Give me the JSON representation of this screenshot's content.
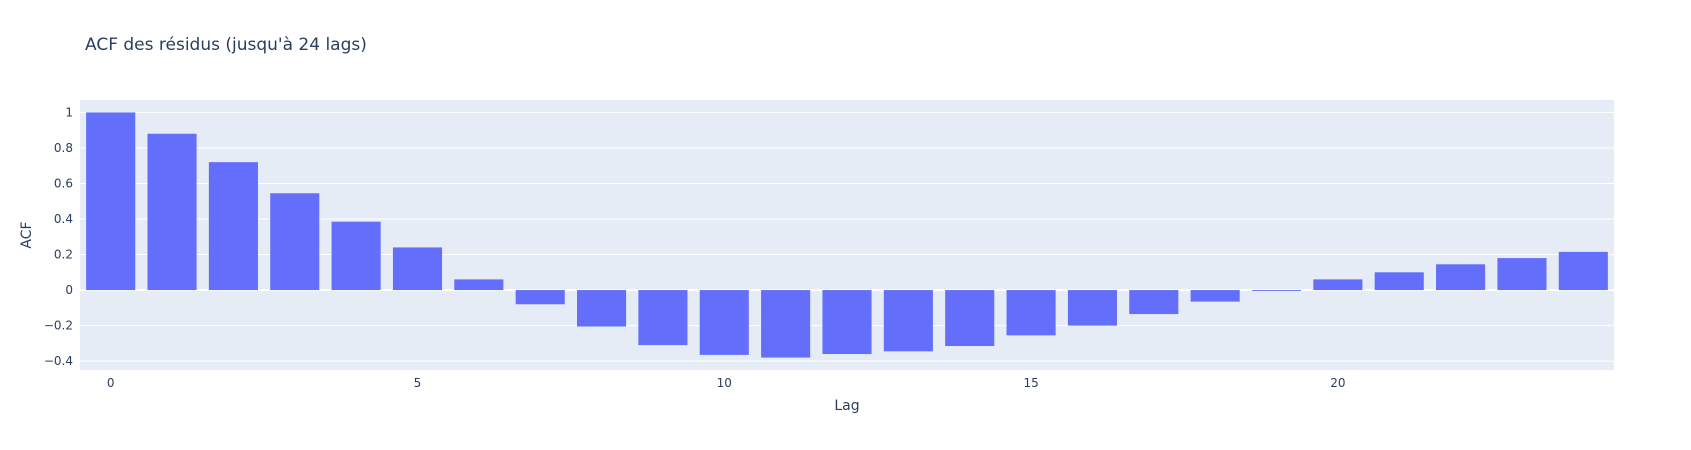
{
  "chart_data": {
    "type": "bar",
    "title": "ACF des résidus (jusqu'à 24 lags)",
    "xlabel": "Lag",
    "ylabel": "ACF",
    "x": [
      0,
      1,
      2,
      3,
      4,
      5,
      6,
      7,
      8,
      9,
      10,
      11,
      12,
      13,
      14,
      15,
      16,
      17,
      18,
      19,
      20,
      21,
      22,
      23,
      24
    ],
    "values": [
      1.0,
      0.88,
      0.72,
      0.545,
      0.385,
      0.24,
      0.06,
      -0.08,
      -0.205,
      -0.31,
      -0.365,
      -0.38,
      -0.36,
      -0.345,
      -0.315,
      -0.255,
      -0.2,
      -0.135,
      -0.065,
      -0.005,
      0.06,
      0.1,
      0.145,
      0.18,
      0.215
    ],
    "xlim": [
      -0.5,
      24.5
    ],
    "ylim": [
      -0.45,
      1.07
    ],
    "xticks": [
      0,
      5,
      10,
      15,
      20
    ],
    "yticks": [
      -0.4,
      -0.2,
      0,
      0.2,
      0.4,
      0.6,
      0.8,
      1
    ],
    "ytick_labels": [
      "−0.4",
      "−0.2",
      "0",
      "0.2",
      "0.4",
      "0.6",
      "0.8",
      "1"
    ],
    "grid": true,
    "colors": {
      "bar": "#636efa",
      "plot_bg": "#e5ecf6",
      "grid": "#ffffff",
      "text": "#2a3f5f"
    }
  }
}
